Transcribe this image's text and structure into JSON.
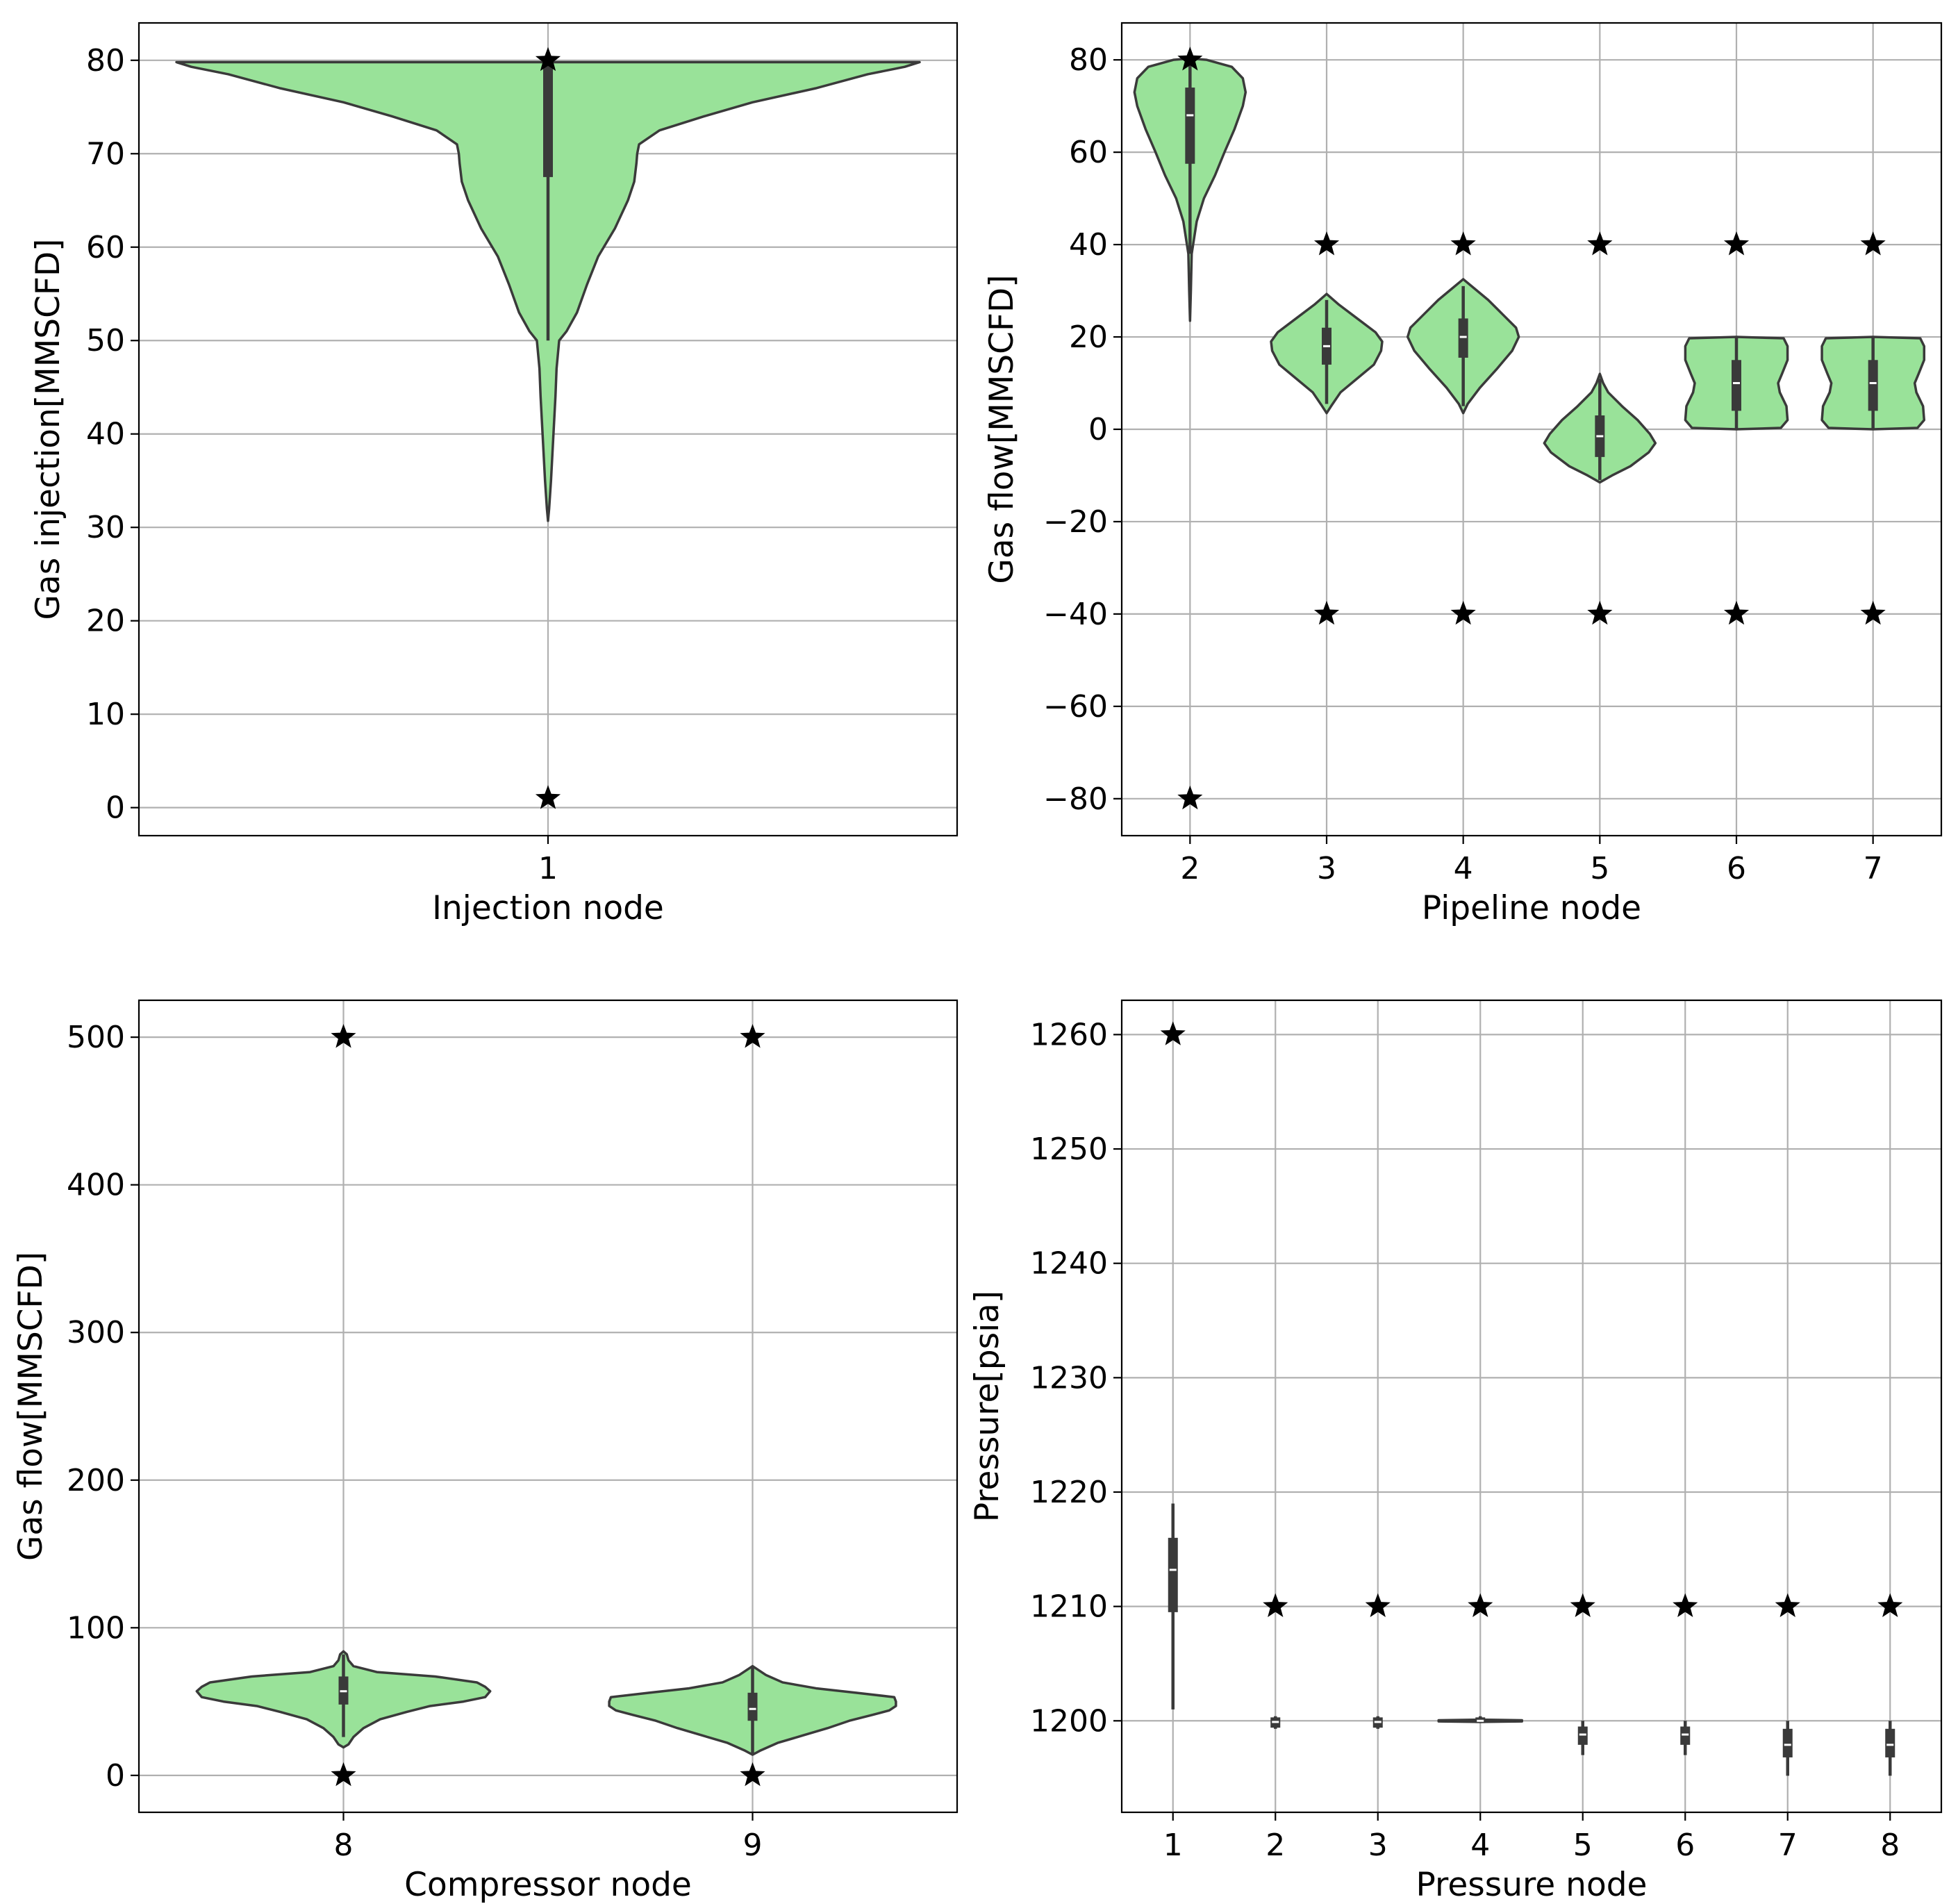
{
  "colors": {
    "violin_fill": "#99e299",
    "violin_edge": "#3a3a3a",
    "box": "#3a3a3a",
    "median": "#ffffff",
    "marker": "#000000",
    "grid": "#b0b0b0"
  },
  "chart_data": [
    {
      "type": "violin",
      "panel": "top-left",
      "xlabel": "Injection node",
      "ylabel": "Gas injection[MMSCFD]",
      "categories": [
        "1"
      ],
      "ylim": [
        -3,
        84
      ],
      "yticks": [
        0,
        10,
        20,
        30,
        40,
        50,
        60,
        70,
        80
      ],
      "ytick_labels": [
        "0",
        "10",
        "20",
        "30",
        "40",
        "50",
        "60",
        "70",
        "80"
      ],
      "grid": true,
      "violins": [
        {
          "category": "1",
          "profile": [
            [
              30.7,
              0.0
            ],
            [
              32,
              0.003
            ],
            [
              35,
              0.008
            ],
            [
              38,
              0.012
            ],
            [
              41,
              0.016
            ],
            [
              44,
              0.02
            ],
            [
              47,
              0.023
            ],
            [
              50,
              0.03
            ],
            [
              51,
              0.05
            ],
            [
              53,
              0.078
            ],
            [
              56,
              0.105
            ],
            [
              59,
              0.135
            ],
            [
              62,
              0.18
            ],
            [
              65,
              0.215
            ],
            [
              67,
              0.232
            ],
            [
              69,
              0.238
            ],
            [
              70,
              0.24
            ],
            [
              71,
              0.245
            ],
            [
              72.5,
              0.3
            ],
            [
              74,
              0.42
            ],
            [
              75.5,
              0.55
            ],
            [
              77,
              0.72
            ],
            [
              78.5,
              0.86
            ],
            [
              79.3,
              0.96
            ],
            [
              79.8,
              1.0
            ]
          ],
          "q1": 67.5,
          "median": 80,
          "q3": 80,
          "whisker_low": 50,
          "whisker_high": 80
        }
      ],
      "markers": [
        {
          "category": "1",
          "value": 80
        },
        {
          "category": "1",
          "value": 1
        }
      ]
    },
    {
      "type": "violin",
      "panel": "top-right",
      "xlabel": "Pipeline node",
      "ylabel": "Gas flow[MMSCFD]",
      "categories": [
        "2",
        "3",
        "4",
        "5",
        "6",
        "7"
      ],
      "ylim": [
        -88,
        88
      ],
      "yticks": [
        -80,
        -60,
        -40,
        -20,
        0,
        20,
        40,
        60,
        80
      ],
      "ytick_labels": [
        "−80",
        "−60",
        "−40",
        "−20",
        "0",
        "20",
        "40",
        "60",
        "80"
      ],
      "grid": true,
      "violins": [
        {
          "category": "2",
          "profile": [
            [
              23.5,
              0.0
            ],
            [
              30,
              0.015
            ],
            [
              38,
              0.03
            ],
            [
              45,
              0.12
            ],
            [
              50,
              0.25
            ],
            [
              55,
              0.45
            ],
            [
              60,
              0.62
            ],
            [
              65,
              0.8
            ],
            [
              70,
              0.95
            ],
            [
              73,
              1.0
            ],
            [
              76,
              0.95
            ],
            [
              78.5,
              0.75
            ],
            [
              80,
              0.3
            ],
            [
              80.3,
              0.0
            ]
          ],
          "q1": 57.5,
          "median": 68,
          "q3": 74,
          "whisker_low": 38,
          "whisker_high": 80
        },
        {
          "category": "3",
          "profile": [
            [
              3.5,
              0.0
            ],
            [
              5,
              0.08
            ],
            [
              8,
              0.25
            ],
            [
              11,
              0.55
            ],
            [
              14,
              0.85
            ],
            [
              17,
              0.98
            ],
            [
              19,
              1.0
            ],
            [
              21,
              0.88
            ],
            [
              24,
              0.55
            ],
            [
              27,
              0.22
            ],
            [
              29.3,
              0.0
            ]
          ],
          "q1": 14,
          "median": 18,
          "q3": 22,
          "whisker_low": 5.5,
          "whisker_high": 28
        },
        {
          "category": "4",
          "profile": [
            [
              3.5,
              0.0
            ],
            [
              5.5,
              0.08
            ],
            [
              9,
              0.3
            ],
            [
              13,
              0.6
            ],
            [
              17,
              0.88
            ],
            [
              20,
              1.0
            ],
            [
              22,
              0.95
            ],
            [
              25,
              0.7
            ],
            [
              28,
              0.45
            ],
            [
              30.5,
              0.2
            ],
            [
              32.5,
              0.0
            ]
          ],
          "q1": 15.5,
          "median": 20,
          "q3": 24,
          "whisker_low": 5,
          "whisker_high": 31
        },
        {
          "category": "5",
          "profile": [
            [
              -11.5,
              0.0
            ],
            [
              -10,
              0.22
            ],
            [
              -8,
              0.55
            ],
            [
              -5,
              0.88
            ],
            [
              -3,
              1.0
            ],
            [
              -1,
              0.9
            ],
            [
              2,
              0.68
            ],
            [
              5,
              0.4
            ],
            [
              8,
              0.15
            ],
            [
              10,
              0.06
            ],
            [
              12,
              0.0
            ]
          ],
          "q1": -6,
          "median": -1.5,
          "q3": 3,
          "whisker_low": -11,
          "whisker_high": 11
        },
        {
          "category": "6",
          "profile": [
            [
              0.0,
              0.0
            ],
            [
              0.3,
              0.8
            ],
            [
              2,
              0.92
            ],
            [
              5,
              0.9
            ],
            [
              8,
              0.78
            ],
            [
              10,
              0.75
            ],
            [
              12,
              0.82
            ],
            [
              15,
              0.92
            ],
            [
              18,
              0.92
            ],
            [
              19.7,
              0.85
            ],
            [
              20,
              0.0
            ]
          ],
          "q1": 4,
          "median": 10,
          "q3": 15,
          "whisker_low": 0,
          "whisker_high": 20
        },
        {
          "category": "7",
          "profile": [
            [
              0.0,
              0.0
            ],
            [
              0.3,
              0.8
            ],
            [
              2,
              0.92
            ],
            [
              5,
              0.9
            ],
            [
              8,
              0.78
            ],
            [
              10,
              0.75
            ],
            [
              12,
              0.82
            ],
            [
              15,
              0.92
            ],
            [
              18,
              0.92
            ],
            [
              19.7,
              0.85
            ],
            [
              20,
              0.0
            ]
          ],
          "q1": 4,
          "median": 10,
          "q3": 15,
          "whisker_low": 0,
          "whisker_high": 20
        }
      ],
      "markers": [
        {
          "category": "2",
          "value": 80
        },
        {
          "category": "2",
          "value": -80
        },
        {
          "category": "3",
          "value": 40
        },
        {
          "category": "3",
          "value": -40
        },
        {
          "category": "4",
          "value": 40
        },
        {
          "category": "4",
          "value": -40
        },
        {
          "category": "5",
          "value": 40
        },
        {
          "category": "5",
          "value": -40
        },
        {
          "category": "6",
          "value": 40
        },
        {
          "category": "6",
          "value": -40
        },
        {
          "category": "7",
          "value": 40
        },
        {
          "category": "7",
          "value": -40
        }
      ]
    },
    {
      "type": "violin",
      "panel": "bottom-left",
      "xlabel": "Compressor node",
      "ylabel": "Gas flow[MMSCFD]",
      "categories": [
        "8",
        "9"
      ],
      "ylim": [
        -25,
        525
      ],
      "yticks": [
        0,
        100,
        200,
        300,
        400,
        500
      ],
      "ytick_labels": [
        "0",
        "100",
        "200",
        "300",
        "400",
        "500"
      ],
      "grid": true,
      "violins": [
        {
          "category": "8",
          "profile": [
            [
              19,
              0.0
            ],
            [
              21,
              0.03
            ],
            [
              26,
              0.06
            ],
            [
              32,
              0.12
            ],
            [
              38,
              0.22
            ],
            [
              43,
              0.38
            ],
            [
              47,
              0.52
            ],
            [
              50,
              0.72
            ],
            [
              53,
              0.85
            ],
            [
              57,
              0.88
            ],
            [
              60,
              0.85
            ],
            [
              63,
              0.8
            ],
            [
              67,
              0.55
            ],
            [
              70,
              0.2
            ],
            [
              74,
              0.06
            ],
            [
              78,
              0.03
            ],
            [
              82,
              0.02
            ],
            [
              84,
              0.0
            ]
          ],
          "q1": 48,
          "median": 57,
          "q3": 67,
          "whisker_low": 26,
          "whisker_high": 82
        },
        {
          "category": "9",
          "profile": [
            [
              14,
              0.0
            ],
            [
              17,
              0.05
            ],
            [
              22,
              0.15
            ],
            [
              27,
              0.3
            ],
            [
              32,
              0.45
            ],
            [
              37,
              0.58
            ],
            [
              41,
              0.72
            ],
            [
              44,
              0.82
            ],
            [
              47,
              0.86
            ],
            [
              50,
              0.86
            ],
            [
              53,
              0.85
            ],
            [
              56,
              0.62
            ],
            [
              59,
              0.38
            ],
            [
              63,
              0.18
            ],
            [
              68,
              0.08
            ],
            [
              74,
              0.0
            ]
          ],
          "q1": 37,
          "median": 45,
          "q3": 56,
          "whisker_low": 15,
          "whisker_high": 73
        }
      ],
      "markers": [
        {
          "category": "8",
          "value": 500
        },
        {
          "category": "8",
          "value": 0
        },
        {
          "category": "9",
          "value": 500
        },
        {
          "category": "9",
          "value": 0
        }
      ]
    },
    {
      "type": "violin",
      "panel": "bottom-right",
      "xlabel": "Pressure node",
      "ylabel": "Pressure[psia]",
      "categories": [
        "1",
        "2",
        "3",
        "4",
        "5",
        "6",
        "7",
        "8"
      ],
      "ylim": [
        1192,
        1263
      ],
      "yticks": [
        1200,
        1210,
        1220,
        1230,
        1240,
        1250,
        1260
      ],
      "ytick_labels": [
        "1200",
        "1210",
        "1220",
        "1230",
        "1240",
        "1250",
        "1260"
      ],
      "grid": true,
      "violins": [
        {
          "category": "1",
          "profile": [],
          "q1": 1209.5,
          "median": 1213.2,
          "q3": 1216,
          "whisker_low": 1201,
          "whisker_high": 1219
        },
        {
          "category": "2",
          "profile": [],
          "q1": 1199.4,
          "median": 1199.9,
          "q3": 1200.3,
          "whisker_low": 1199.3,
          "whisker_high": 1200.4
        },
        {
          "category": "3",
          "profile": [],
          "q1": 1199.4,
          "median": 1199.9,
          "q3": 1200.3,
          "whisker_low": 1199.3,
          "whisker_high": 1200.4
        },
        {
          "category": "4",
          "profile": [
            [
              1199.9,
              0.0
            ],
            [
              1199.95,
              1.0
            ],
            [
              1200.05,
              1.0
            ],
            [
              1200.1,
              0.0
            ]
          ],
          "q1": 1199.8,
          "median": 1200,
          "q3": 1200.3,
          "whisker_low": 1199.8,
          "whisker_high": 1200.4
        },
        {
          "category": "5",
          "profile": [],
          "q1": 1197.9,
          "median": 1198.8,
          "q3": 1199.5,
          "whisker_low": 1197,
          "whisker_high": 1200
        },
        {
          "category": "6",
          "profile": [],
          "q1": 1197.9,
          "median": 1198.8,
          "q3": 1199.5,
          "whisker_low": 1197,
          "whisker_high": 1200
        },
        {
          "category": "7",
          "profile": [],
          "q1": 1196.8,
          "median": 1197.9,
          "q3": 1199.3,
          "whisker_low": 1195.2,
          "whisker_high": 1200
        },
        {
          "category": "8",
          "profile": [],
          "q1": 1196.8,
          "median": 1197.9,
          "q3": 1199.3,
          "whisker_low": 1195.2,
          "whisker_high": 1200
        }
      ],
      "markers": [
        {
          "category": "1",
          "value": 1260
        },
        {
          "category": "2",
          "value": 1210
        },
        {
          "category": "3",
          "value": 1210
        },
        {
          "category": "4",
          "value": 1210
        },
        {
          "category": "5",
          "value": 1210
        },
        {
          "category": "6",
          "value": 1210
        },
        {
          "category": "7",
          "value": 1210
        },
        {
          "category": "8",
          "value": 1210
        }
      ]
    }
  ]
}
